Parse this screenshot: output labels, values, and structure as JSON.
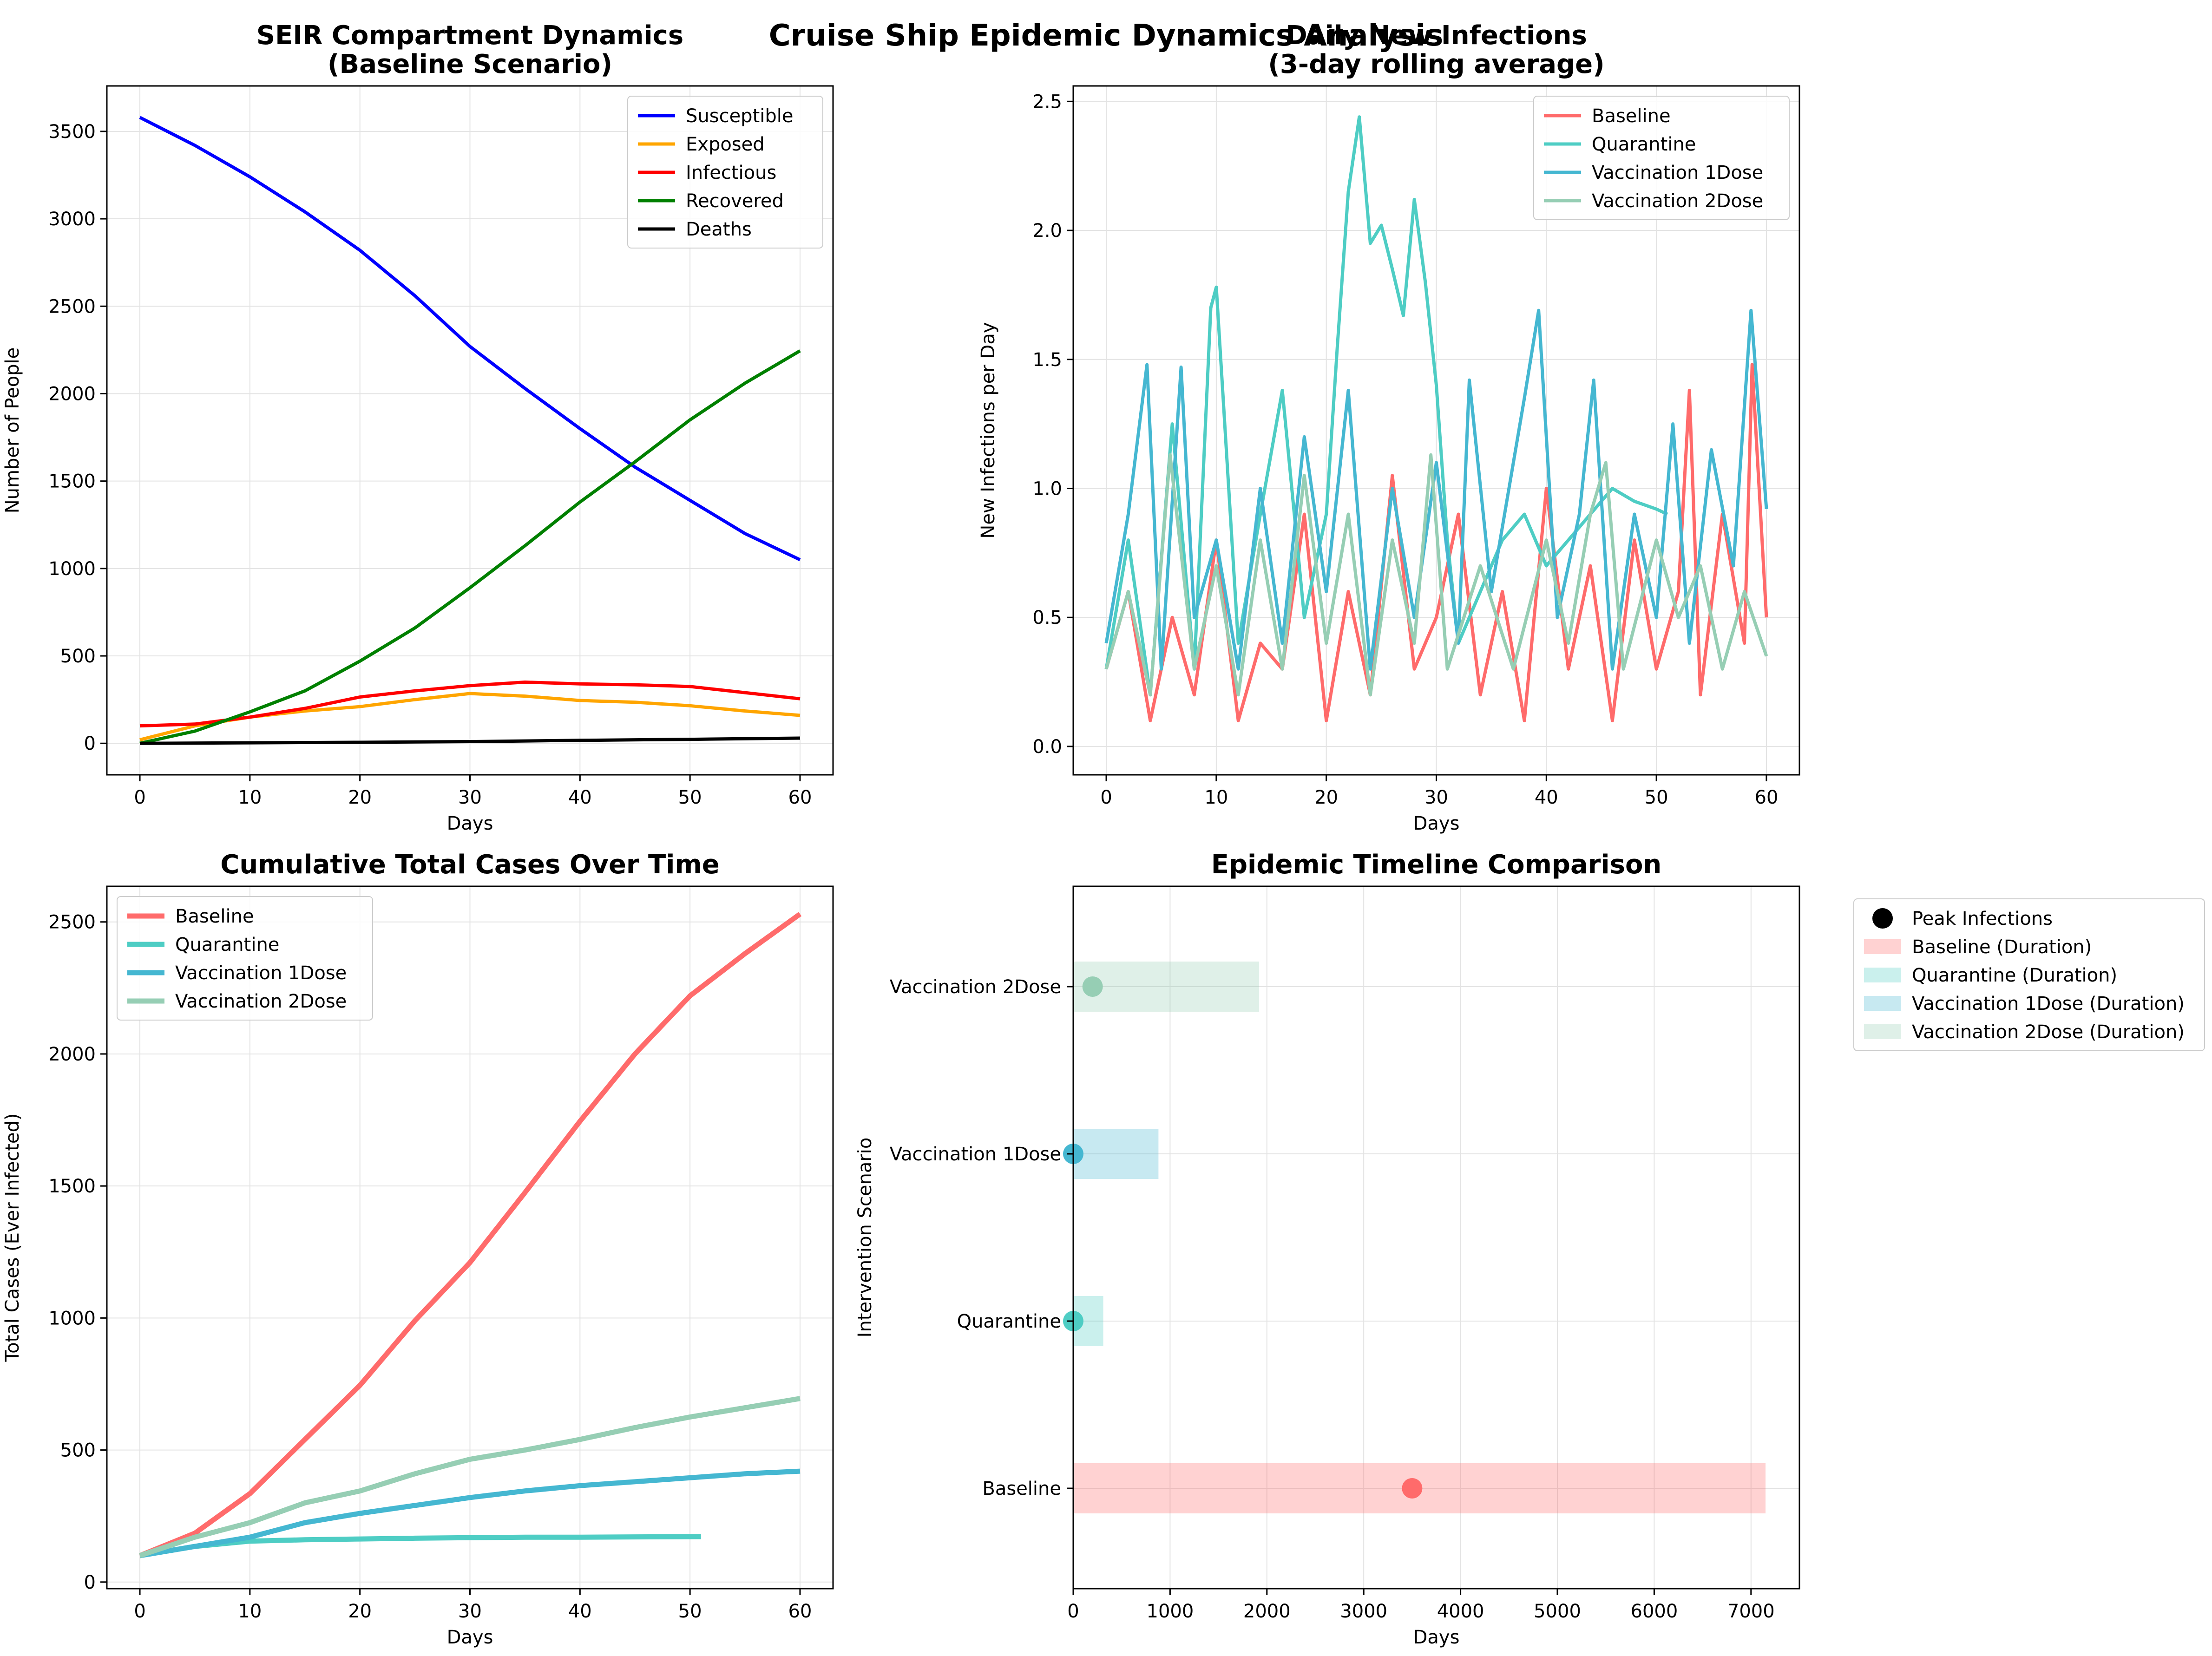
{
  "figure_title": "Cruise Ship Epidemic Dynamics Analysis",
  "chart_data": [
    {
      "type": "line",
      "title": "SEIR Compartment Dynamics\n(Baseline Scenario)",
      "xlabel": "Days",
      "ylabel": "Number of People",
      "xlim": [
        -3,
        63
      ],
      "ylim": [
        -180,
        3760
      ],
      "xticks": [
        0,
        10,
        20,
        30,
        40,
        50,
        60
      ],
      "yticks": [
        0,
        500,
        1000,
        1500,
        2000,
        2500,
        3000,
        3500
      ],
      "grid": true,
      "legend_position": "upper right",
      "series": [
        {
          "name": "Susceptible",
          "color": "#0000ff",
          "x": [
            0,
            5,
            10,
            15,
            20,
            25,
            30,
            35,
            40,
            45,
            50,
            55,
            60
          ],
          "values": [
            3580,
            3420,
            3240,
            3040,
            2820,
            2560,
            2270,
            2030,
            1800,
            1580,
            1390,
            1200,
            1050
          ]
        },
        {
          "name": "Exposed",
          "color": "#ffa500",
          "x": [
            0,
            5,
            10,
            15,
            20,
            25,
            30,
            35,
            40,
            45,
            50,
            55,
            60
          ],
          "values": [
            20,
            100,
            150,
            185,
            210,
            250,
            285,
            270,
            245,
            235,
            215,
            185,
            160
          ]
        },
        {
          "name": "Infectious",
          "color": "#ff0000",
          "x": [
            0,
            5,
            10,
            15,
            20,
            25,
            30,
            35,
            40,
            45,
            50,
            55,
            60
          ],
          "values": [
            100,
            110,
            150,
            200,
            265,
            300,
            330,
            350,
            340,
            335,
            325,
            290,
            255
          ]
        },
        {
          "name": "Recovered",
          "color": "#008000",
          "x": [
            0,
            5,
            10,
            15,
            20,
            25,
            30,
            35,
            40,
            45,
            50,
            55,
            60
          ],
          "values": [
            0,
            70,
            180,
            300,
            470,
            660,
            890,
            1130,
            1380,
            1610,
            1850,
            2060,
            2245
          ]
        },
        {
          "name": "Deaths",
          "color": "#000000",
          "x": [
            0,
            10,
            20,
            30,
            40,
            50,
            60
          ],
          "values": [
            0,
            3,
            6,
            10,
            17,
            23,
            30
          ]
        }
      ]
    },
    {
      "type": "line",
      "title": "Daily New Infections\n(3-day rolling average)",
      "xlabel": "Days",
      "ylabel": "New Infections per Day",
      "xlim": [
        -3,
        63
      ],
      "ylim": [
        -0.11,
        2.56
      ],
      "xticks": [
        0,
        10,
        20,
        30,
        40,
        50,
        60
      ],
      "yticks": [
        0.0,
        0.5,
        1.0,
        1.5,
        2.0,
        2.5
      ],
      "grid": true,
      "legend_position": "upper right",
      "series": [
        {
          "name": "Baseline",
          "color": "#ff6b6b",
          "x": [
            0,
            2,
            4,
            6,
            8,
            10,
            12,
            14,
            16,
            18,
            20,
            22,
            24,
            26,
            28,
            30,
            32,
            34,
            36,
            38,
            40,
            42,
            44,
            46,
            48,
            50,
            52,
            53,
            54,
            56,
            58,
            58.7,
            60
          ],
          "values": [
            0.3,
            0.6,
            0.1,
            0.5,
            0.2,
            0.8,
            0.1,
            0.4,
            0.3,
            0.9,
            0.1,
            0.6,
            0.2,
            1.05,
            0.3,
            0.5,
            0.9,
            0.2,
            0.6,
            0.1,
            1.0,
            0.3,
            0.7,
            0.1,
            0.8,
            0.3,
            0.6,
            1.38,
            0.2,
            0.9,
            0.4,
            1.48,
            0.5
          ]
        },
        {
          "name": "Quarantine",
          "color": "#4ecdc4",
          "x": [
            0,
            2,
            4,
            6,
            8,
            9.5,
            10,
            12,
            14,
            16,
            18,
            20,
            21,
            22,
            23,
            24,
            25,
            26,
            27,
            28,
            29,
            30,
            31,
            32,
            34,
            36,
            38,
            40,
            42,
            44,
            46,
            48,
            50,
            51
          ],
          "values": [
            0.3,
            0.8,
            0.2,
            1.25,
            0.3,
            1.7,
            1.78,
            0.4,
            0.9,
            1.38,
            0.5,
            0.9,
            1.55,
            2.15,
            2.44,
            1.95,
            2.02,
            1.85,
            1.67,
            2.12,
            1.8,
            1.4,
            0.8,
            0.4,
            0.6,
            0.8,
            0.9,
            0.7,
            0.8,
            0.9,
            1.0,
            0.95,
            0.92,
            0.9
          ]
        },
        {
          "name": "Vaccination 1Dose",
          "color": "#45b7d1",
          "x": [
            0,
            2,
            3.7,
            5,
            6.8,
            8,
            10,
            12,
            14,
            16,
            18,
            20,
            22,
            24,
            26,
            28,
            30,
            32,
            33,
            35,
            38,
            39.3,
            41,
            43,
            44.3,
            46,
            48,
            50,
            51.5,
            53,
            55,
            57,
            58.6,
            60
          ],
          "values": [
            0.4,
            0.9,
            1.48,
            0.3,
            1.47,
            0.5,
            0.8,
            0.3,
            1.0,
            0.4,
            1.2,
            0.6,
            1.38,
            0.3,
            1.0,
            0.5,
            1.1,
            0.4,
            1.42,
            0.6,
            1.35,
            1.69,
            0.5,
            0.9,
            1.42,
            0.3,
            0.9,
            0.5,
            1.25,
            0.4,
            1.15,
            0.7,
            1.69,
            0.92
          ]
        },
        {
          "name": "Vaccination 2Dose",
          "color": "#96ceb4",
          "x": [
            0,
            2,
            4,
            5.8,
            8,
            10,
            12,
            14,
            16,
            18,
            20,
            22,
            24,
            26,
            28,
            29.5,
            31,
            34,
            37,
            40,
            42,
            44,
            45.4,
            47,
            50,
            52,
            54,
            56,
            58,
            60
          ],
          "values": [
            0.3,
            0.6,
            0.2,
            1.13,
            0.3,
            0.7,
            0.2,
            0.8,
            0.3,
            1.05,
            0.4,
            0.9,
            0.2,
            0.8,
            0.4,
            1.13,
            0.3,
            0.7,
            0.3,
            0.8,
            0.4,
            0.9,
            1.1,
            0.3,
            0.8,
            0.5,
            0.7,
            0.3,
            0.6,
            0.35
          ]
        }
      ]
    },
    {
      "type": "line",
      "title": "Cumulative Total Cases Over Time",
      "xlabel": "Days",
      "ylabel": "Total Cases (Ever Infected)",
      "xlim": [
        -3,
        63
      ],
      "ylim": [
        -25,
        2635
      ],
      "xticks": [
        0,
        10,
        20,
        30,
        40,
        50,
        60
      ],
      "yticks": [
        0,
        500,
        1000,
        1500,
        2000,
        2500
      ],
      "grid": true,
      "legend_position": "upper left",
      "series": [
        {
          "name": "Baseline",
          "color": "#ff6b6b",
          "x": [
            0,
            5,
            10,
            15,
            20,
            25,
            30,
            35,
            40,
            45,
            50,
            55,
            60
          ],
          "values": [
            100,
            185,
            335,
            540,
            745,
            990,
            1210,
            1475,
            1745,
            2000,
            2220,
            2380,
            2530
          ]
        },
        {
          "name": "Quarantine",
          "color": "#4ecdc4",
          "x": [
            0,
            5,
            10,
            15,
            20,
            25,
            30,
            35,
            40,
            45,
            51
          ],
          "values": [
            100,
            135,
            155,
            160,
            163,
            166,
            168,
            170,
            170,
            171,
            172
          ]
        },
        {
          "name": "Vaccination 1Dose",
          "color": "#45b7d1",
          "x": [
            0,
            5,
            10,
            15,
            20,
            25,
            30,
            35,
            40,
            45,
            50,
            55,
            60
          ],
          "values": [
            100,
            135,
            170,
            225,
            260,
            290,
            320,
            345,
            365,
            380,
            395,
            410,
            420
          ]
        },
        {
          "name": "Vaccination 2Dose",
          "color": "#96ceb4",
          "x": [
            0,
            5,
            10,
            15,
            20,
            25,
            30,
            35,
            40,
            45,
            50,
            55,
            60
          ],
          "values": [
            100,
            170,
            225,
            300,
            345,
            410,
            465,
            500,
            540,
            585,
            625,
            660,
            695
          ]
        }
      ]
    },
    {
      "type": "bar",
      "orientation": "horizontal",
      "title": "Epidemic Timeline Comparison",
      "xlabel": "Days",
      "ylabel": "Intervention Scenario",
      "xlim": [
        0,
        7500
      ],
      "xticks": [
        0,
        1000,
        2000,
        3000,
        4000,
        5000,
        6000,
        7000
      ],
      "categories": [
        "Baseline",
        "Quarantine",
        "Vaccination 1Dose",
        "Vaccination 2Dose"
      ],
      "grid": true,
      "legend_position": "outside upper right",
      "series": [
        {
          "name": "Duration",
          "values": [
            7150,
            310,
            880,
            1920
          ]
        },
        {
          "name": "Peak Infections",
          "values": [
            3500,
            0,
            0,
            200
          ]
        }
      ],
      "colors": [
        "#ff6b6b",
        "#4ecdc4",
        "#45b7d1",
        "#96ceb4"
      ],
      "legend": [
        "Peak Infections",
        "Baseline (Duration)",
        "Quarantine (Duration)",
        "Vaccination 1Dose (Duration)",
        "Vaccination 2Dose (Duration)"
      ]
    }
  ]
}
